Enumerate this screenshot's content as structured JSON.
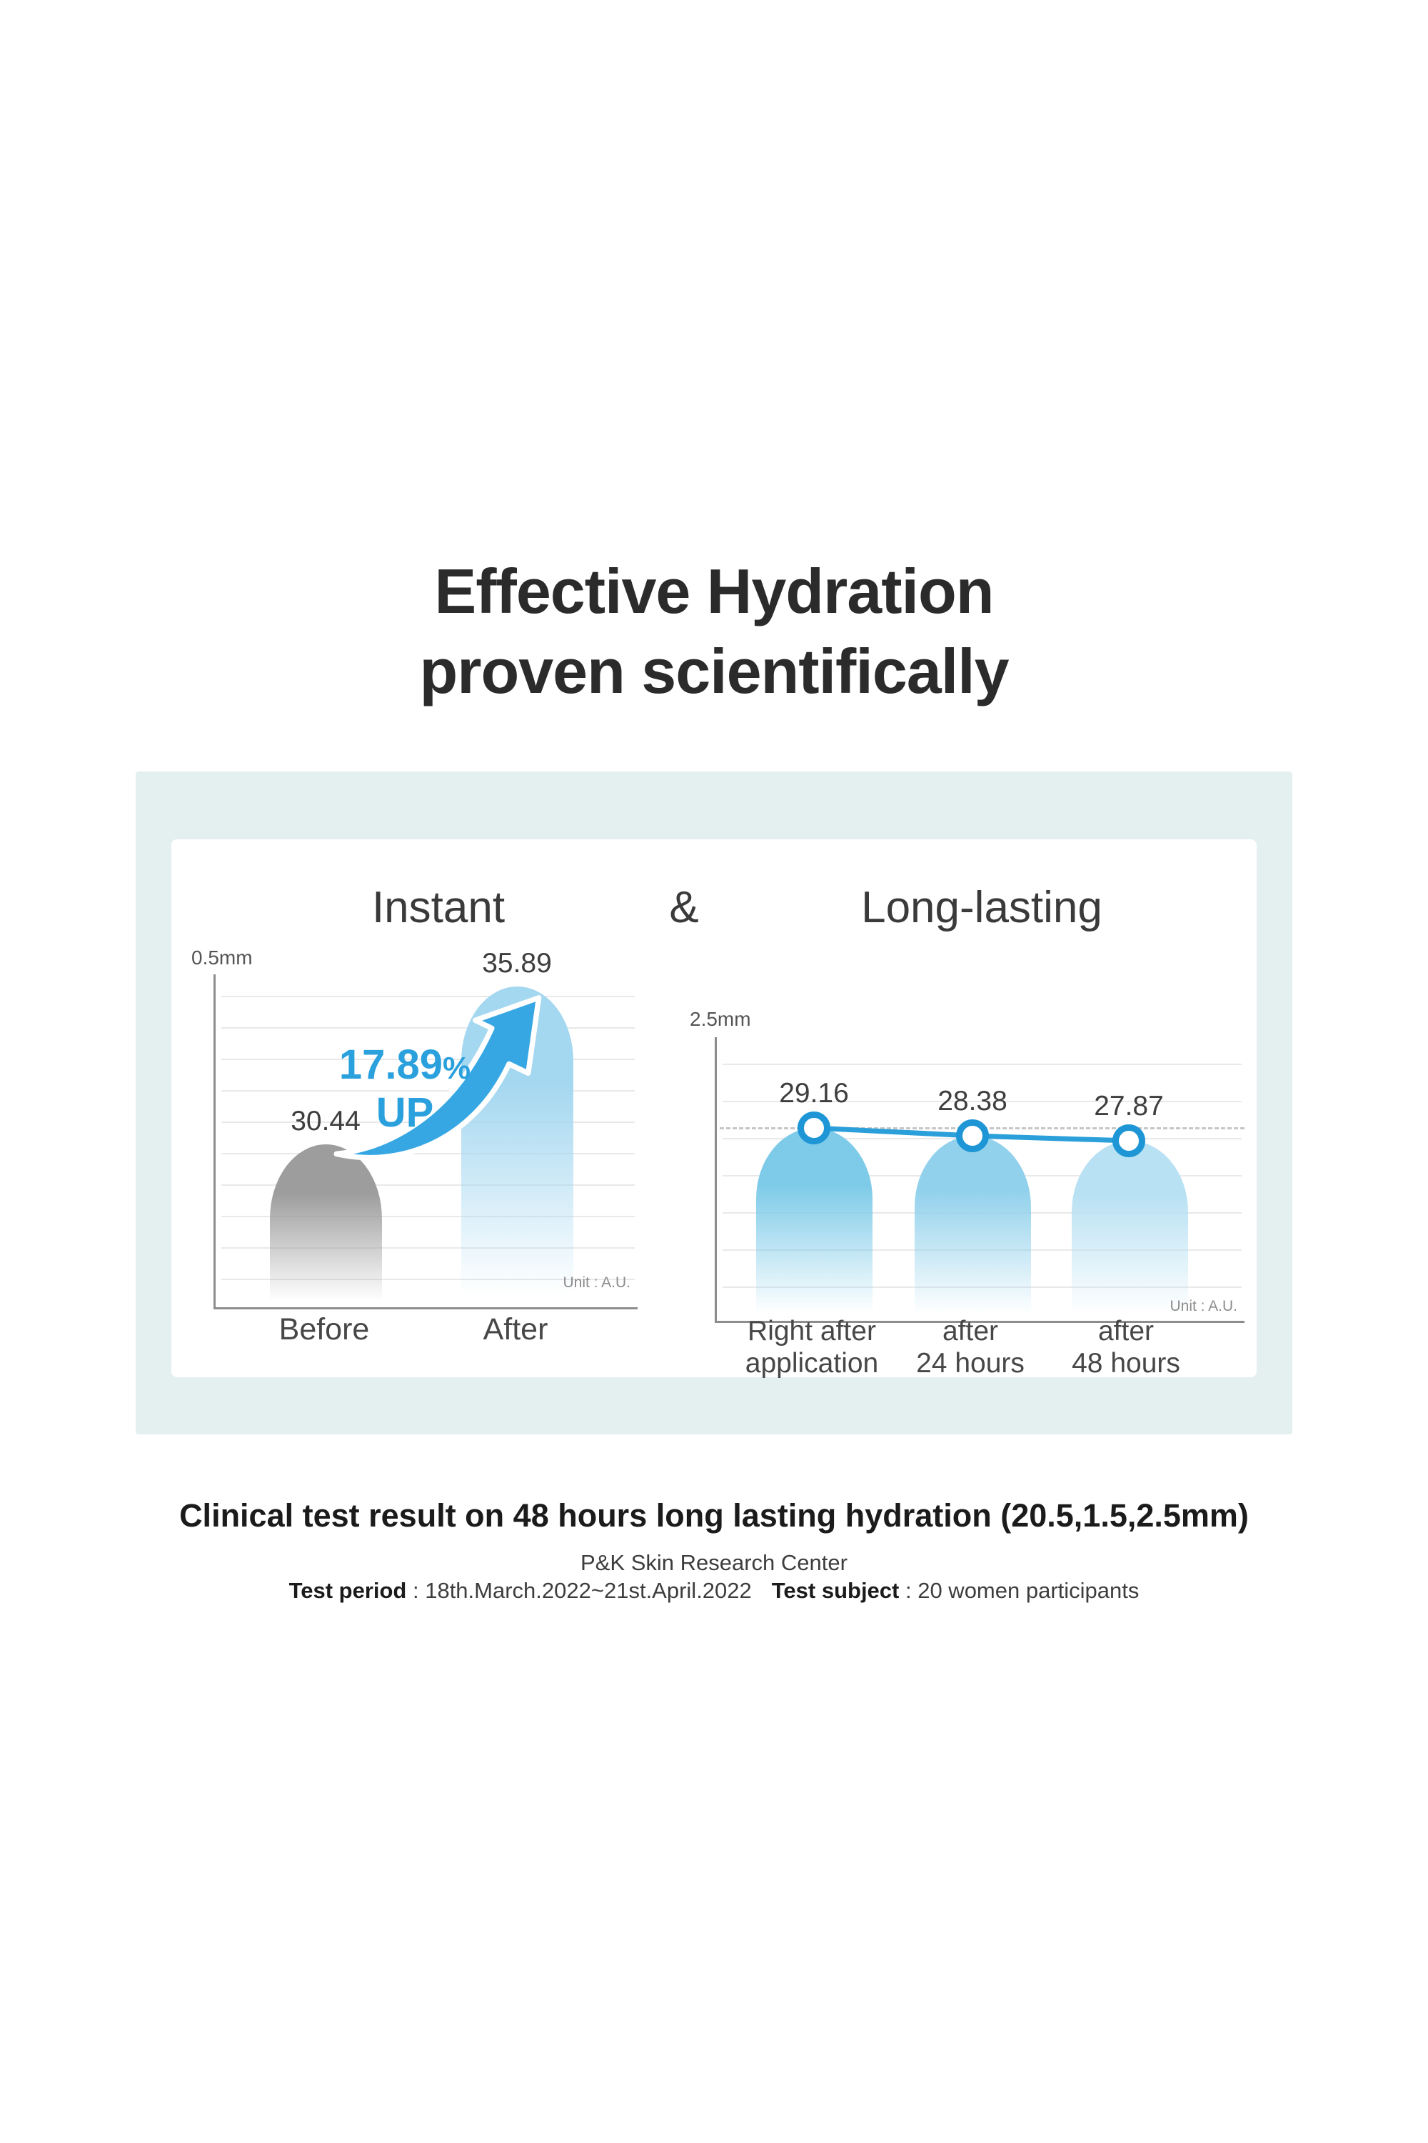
{
  "title": {
    "line1": "Effective Hydration",
    "line2": "proven scientifically"
  },
  "card": {
    "left_title": "Instant",
    "ampersand": "&",
    "right_title": "Long-lasting"
  },
  "chart_data": [
    {
      "type": "bar",
      "title": "Instant",
      "axis_top_label": "0.5mm",
      "unit_note": "Unit : A.U.",
      "categories": [
        "Before",
        "After"
      ],
      "values": [
        30.44,
        35.89
      ],
      "annotation": {
        "value": "17.89",
        "sign": "%",
        "word": "UP"
      },
      "bar_colors": [
        "#9d9d9d",
        "#a4d7f0"
      ],
      "ylabel": "",
      "xlabel": "",
      "axis_note": "truncated baseline, gridlines on, no legend"
    },
    {
      "type": "bar",
      "title": "Long-lasting",
      "axis_top_label": "2.5mm",
      "unit_note": "Unit : A.U.",
      "categories": [
        "Right after application",
        "after 24 hours",
        "after 48 hours"
      ],
      "category_lines": [
        [
          "Right after",
          "application"
        ],
        [
          "after",
          "24 hours"
        ],
        [
          "after",
          "48 hours"
        ]
      ],
      "values": [
        29.16,
        28.38,
        27.87
      ],
      "bar_colors": [
        "#7ecbe9",
        "#92d1ec",
        "#b8e1f3"
      ],
      "line_overlay": true,
      "line_color": "#2b9fd9",
      "marker_color": "#1e96d6",
      "dashed_reference_at": 29.16,
      "ylabel": "",
      "xlabel": "",
      "axis_note": "truncated baseline, gridlines on, no legend"
    }
  ],
  "caption": {
    "headline": "Clinical test result on 48 hours long lasting hydration (20.5,1.5,2.5mm)",
    "center_name": "P&K Skin Research Center",
    "period_label": "Test period",
    "period_value": " : 18th.March.2022~21st.April.2022",
    "subject_label": "Test subject",
    "subject_value": " : 20 women participants"
  },
  "colors": {
    "accent_blue": "#2aa0dd",
    "arrow_blue": "#36a7e3",
    "panel_mint": "#e4f0f0",
    "card_white": "#ffffff",
    "title_dark": "#2b2b2b",
    "gray_bar": "#9d9d9d"
  }
}
